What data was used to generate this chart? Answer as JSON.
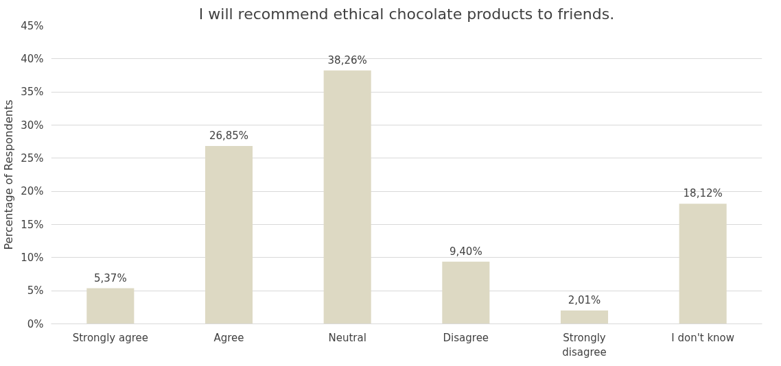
{
  "chart_data": {
    "type": "bar",
    "title": "I will recommend ethical chocolate products to friends.",
    "ylabel": "Percentage of Respondents",
    "categories": [
      "Strongly agree",
      "Agree",
      "Neutral",
      "Disagree",
      "Strongly disagree",
      "I don't know"
    ],
    "values": [
      5.37,
      26.85,
      38.26,
      9.4,
      2.01,
      18.12
    ],
    "value_labels": [
      "5,37%",
      "26,85%",
      "38,26%",
      "9,40%",
      "2,01%",
      "18,12%"
    ],
    "color": "#ddd9c3",
    "ylim": [
      0,
      45
    ],
    "yticks": [
      {
        "value": 0,
        "label": "0%"
      },
      {
        "value": 5,
        "label": "5%"
      },
      {
        "value": 10,
        "label": "10%"
      },
      {
        "value": 15,
        "label": "15%"
      },
      {
        "value": 20,
        "label": "20%"
      },
      {
        "value": 25,
        "label": "25%"
      },
      {
        "value": 30,
        "label": "30%"
      },
      {
        "value": 35,
        "label": "35%"
      },
      {
        "value": 40,
        "label": "40%"
      },
      {
        "value": 45,
        "label": "45%"
      }
    ],
    "grid": "y"
  }
}
